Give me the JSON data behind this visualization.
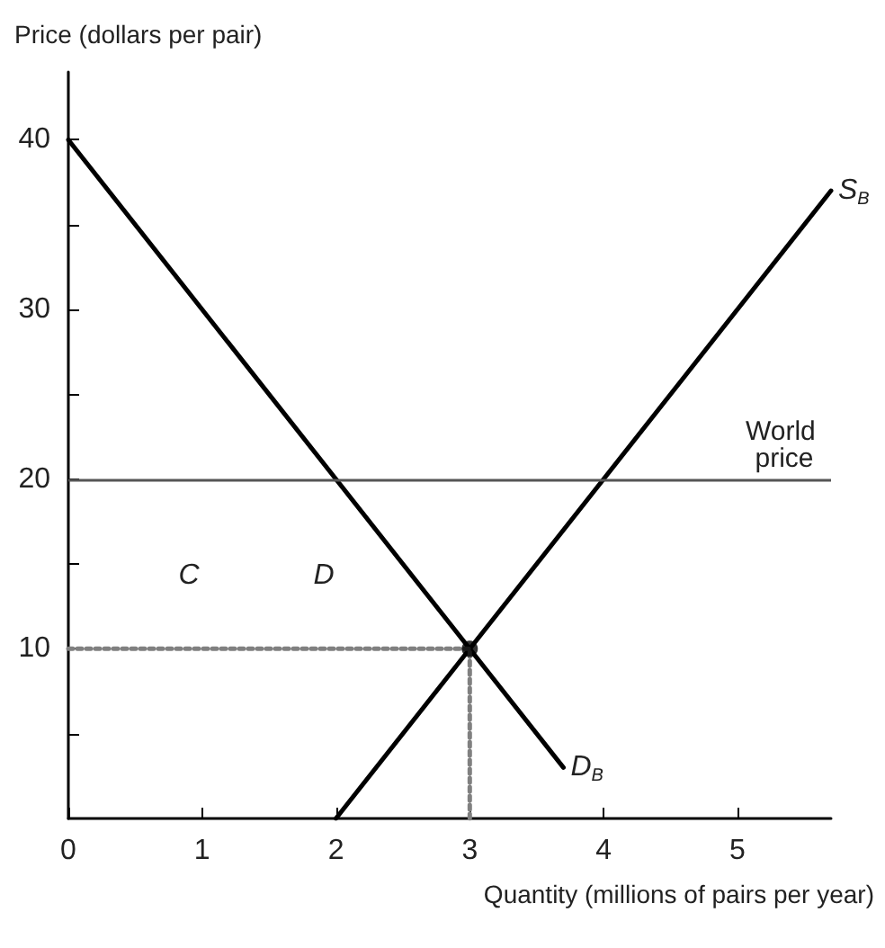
{
  "chart_data": {
    "type": "line",
    "xlabel": "Quantity (millions of pairs per year)",
    "ylabel": "Price (dollars per pair)",
    "xlim": [
      0,
      5.7
    ],
    "xticks": [
      0,
      1,
      2,
      3,
      4,
      5
    ],
    "ylim": [
      0,
      44
    ],
    "yticks": [
      {
        "value": 5,
        "label": null
      },
      10,
      {
        "value": 15,
        "label": null
      },
      20,
      {
        "value": 25,
        "label": null
      },
      30,
      {
        "value": 35,
        "label": null
      },
      40
    ],
    "grid": false,
    "legend": false,
    "series": [
      {
        "name": "S$_{B}$",
        "color": "#000000",
        "x": [
          2,
          5.7
        ],
        "values": [
          0,
          37
        ]
      },
      {
        "name": "D$_{B}$",
        "color": "#000000",
        "x": [
          0,
          3.7
        ],
        "values": [
          40,
          3
        ]
      },
      {
        "color": "#808080",
        "line_style": "dotted",
        "x": [
          0,
          3,
          3
        ],
        "values": [
          10,
          10,
          0
        ]
      },
      {
        "type": "scatter",
        "marker": "circle",
        "color": "#000000",
        "x": [
          3
        ],
        "values": [
          10
        ]
      }
    ],
    "ref_lines": [
      {
        "axis": "y",
        "value": 20,
        "label": "World price",
        "color": "#555555"
      }
    ],
    "annotations": [
      "C",
      "D"
    ]
  }
}
